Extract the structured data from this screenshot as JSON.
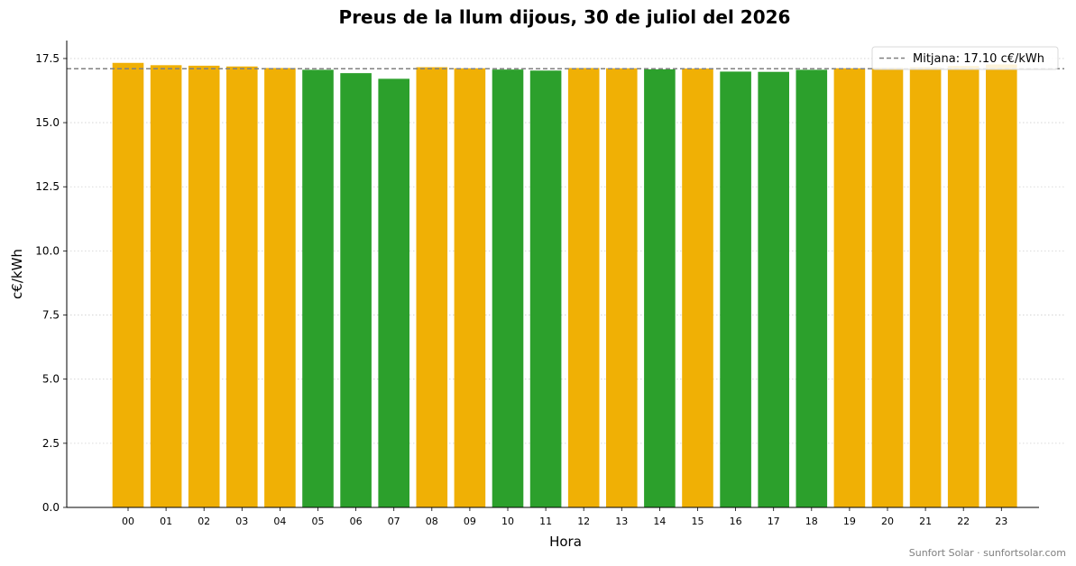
{
  "chart_data": {
    "type": "bar",
    "title": "Preus de la llum dijous, 30 de juliol del 2026",
    "xlabel": "Hora",
    "ylabel": "c€/kWh",
    "ylim": [
      0,
      18.2
    ],
    "yticks": [
      "0.0",
      "2.5",
      "5.0",
      "7.5",
      "10.0",
      "12.5",
      "15.0",
      "17.5"
    ],
    "categories": [
      "00",
      "01",
      "02",
      "03",
      "04",
      "05",
      "06",
      "07",
      "08",
      "09",
      "10",
      "11",
      "12",
      "13",
      "14",
      "15",
      "16",
      "17",
      "18",
      "19",
      "20",
      "21",
      "22",
      "23"
    ],
    "values": [
      17.33,
      17.24,
      17.22,
      17.19,
      17.13,
      17.06,
      16.93,
      16.71,
      17.16,
      17.12,
      17.07,
      17.03,
      17.13,
      17.12,
      17.08,
      17.11,
      16.99,
      16.98,
      17.06,
      17.12,
      17.14,
      17.16,
      17.21,
      17.27
    ],
    "bar_colors": [
      "#f0b005",
      "#f0b005",
      "#f0b005",
      "#f0b005",
      "#f0b005",
      "#2ca02c",
      "#2ca02c",
      "#2ca02c",
      "#f0b005",
      "#f0b005",
      "#2ca02c",
      "#2ca02c",
      "#f0b005",
      "#f0b005",
      "#2ca02c",
      "#f0b005",
      "#2ca02c",
      "#2ca02c",
      "#2ca02c",
      "#f0b005",
      "#f0b005",
      "#f0b005",
      "#f0b005",
      "#f0b005"
    ],
    "average": {
      "value": 17.1,
      "legend_label": "Mitjana: 17.10 c€/kWh",
      "color": "#808080",
      "style": "dashed"
    },
    "grid": {
      "y": true,
      "style": "dotted",
      "color": "#d0d0d0"
    },
    "legend_position": "top-right",
    "colors": {
      "above_average": "#f0b005",
      "below_average": "#2ca02c"
    }
  },
  "footer": {
    "credit": "Sunfort Solar · sunfortsolar.com"
  }
}
